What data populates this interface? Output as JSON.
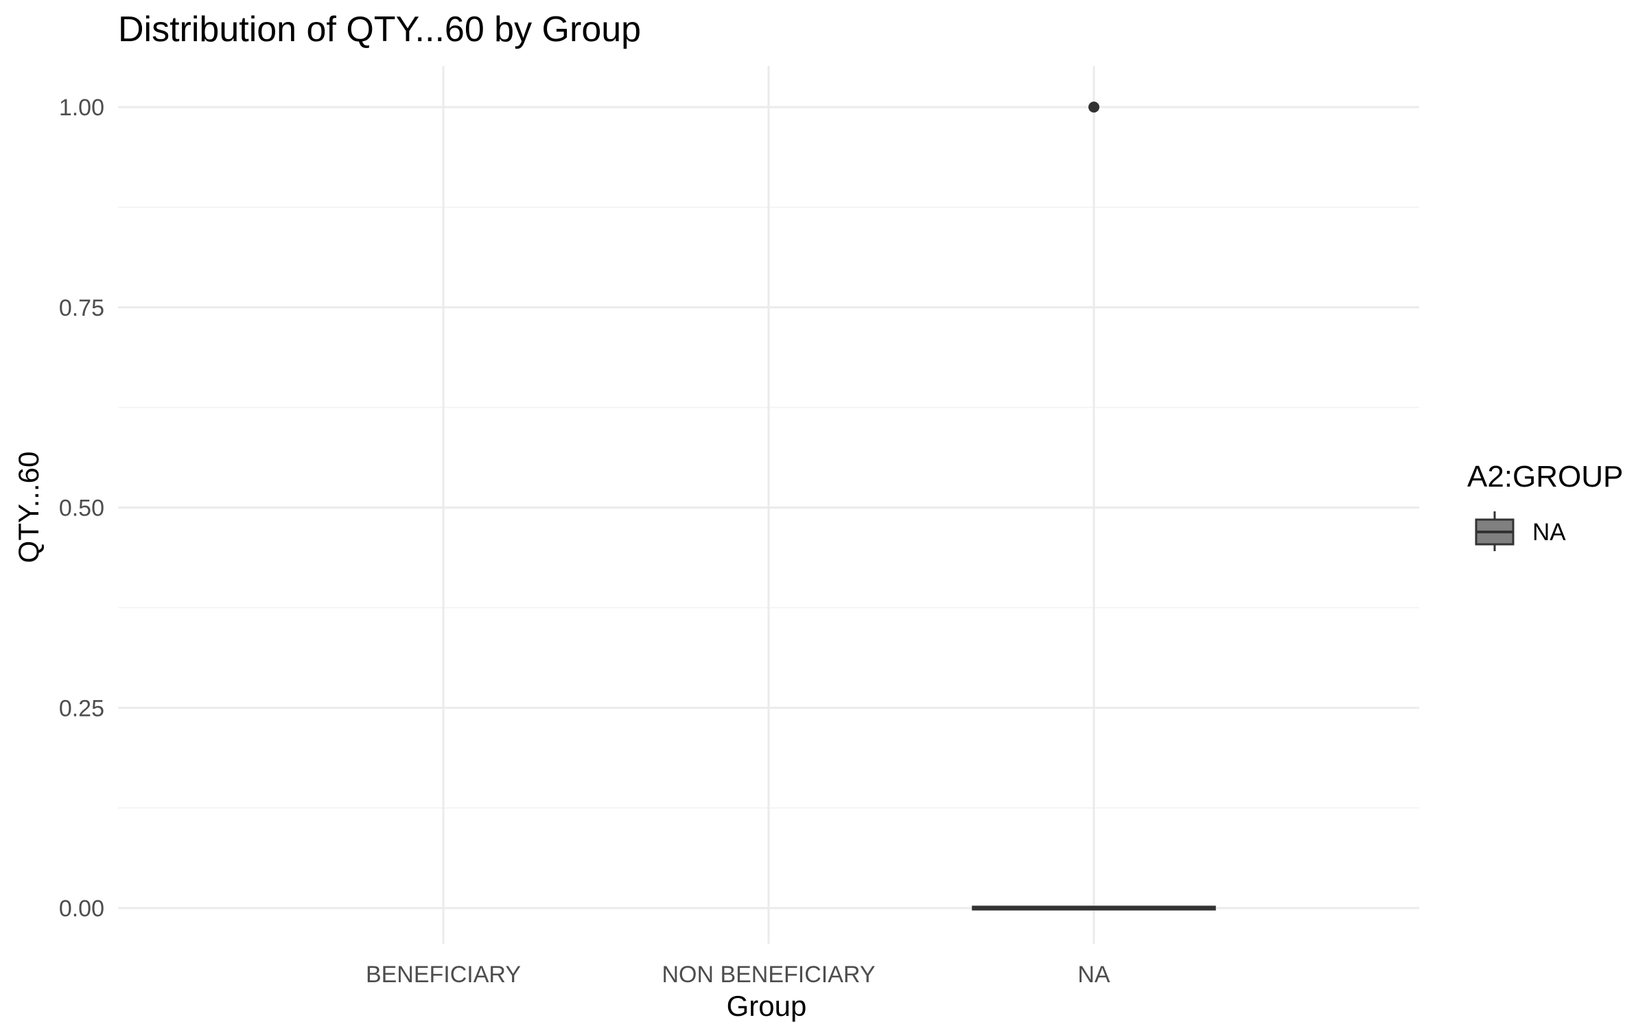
{
  "chart_data": {
    "type": "box",
    "title": "Distribution of QTY...60 by Group",
    "xlabel": "Group",
    "ylabel": "QTY...60",
    "categories": [
      "BENEFICIARY",
      "NON BENEFICIARY",
      "NA"
    ],
    "ylim": [
      -0.05,
      1.05
    ],
    "yticks": [
      0.0,
      0.25,
      0.5,
      0.75,
      1.0
    ],
    "ytick_labels": [
      "0.00",
      "0.25",
      "0.50",
      "0.75",
      "1.00"
    ],
    "grid": true,
    "legend": {
      "title": "A2:GROUP",
      "placement": "right",
      "entries": [
        {
          "label": "NA",
          "fill": "#808080"
        }
      ]
    },
    "boxes": [
      {
        "category": "NA",
        "group": "NA",
        "min": 0,
        "q1": 0,
        "median": 0,
        "q3": 0,
        "max": 0,
        "outliers": [
          1.0
        ]
      }
    ],
    "colors": {
      "box_line": "#333333",
      "outlier": "#333333",
      "grid_major": "#ebebeb",
      "grid_minor": "#f3f3f3"
    }
  }
}
